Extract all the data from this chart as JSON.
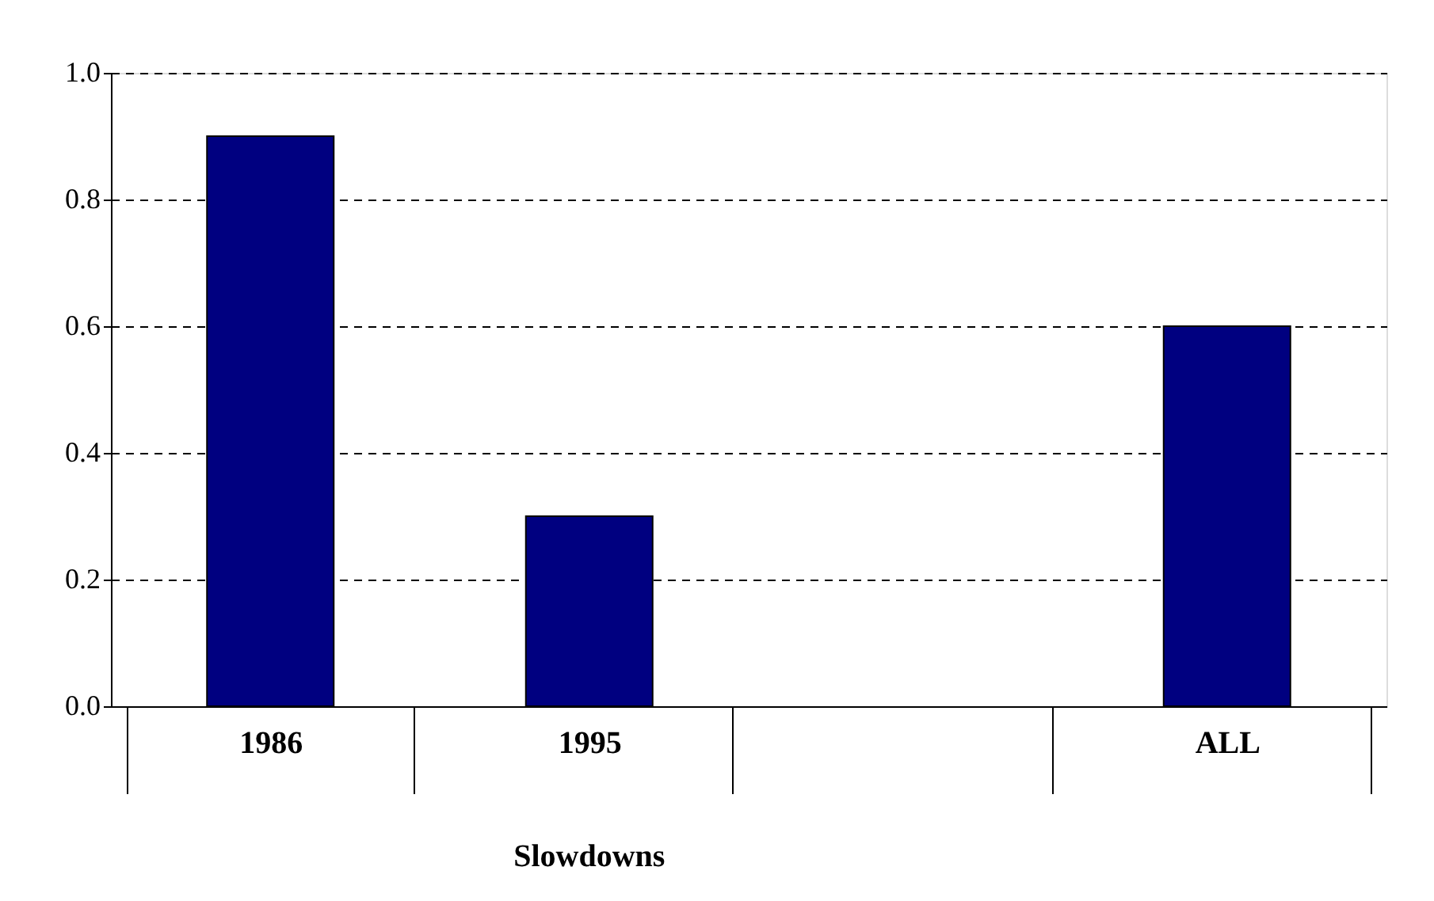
{
  "chart_data": {
    "type": "bar",
    "categories": [
      "1986",
      "1995",
      null,
      "ALL"
    ],
    "values": [
      0.9,
      0.3,
      null,
      0.6
    ],
    "color": "#000080",
    "ylim": [
      0,
      1
    ],
    "yticks": [
      {
        "value": 0,
        "label": "0.0"
      },
      {
        "value": 0.2,
        "label": "0.2"
      },
      {
        "value": 0.4,
        "label": "0.4"
      },
      {
        "value": 0.6,
        "label": "0.6"
      },
      {
        "value": 0.8,
        "label": "0.8"
      },
      {
        "value": 1,
        "label": "1.0"
      }
    ],
    "grid": "y",
    "annotations": [
      "Slowdowns"
    ]
  }
}
